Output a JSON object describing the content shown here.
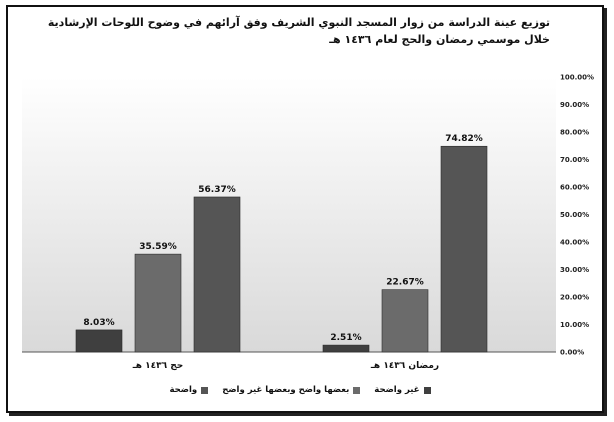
{
  "chart_data": {
    "type": "bar",
    "title": "توزيع عينة الدراسة من زوار المسجد النبوي الشريف وفق آرائهم في وضوح اللوحات الإرشادية",
    "subtitle": "خلال موسمي رمضان والحج لعام ١٤٣٦ هـ",
    "categories": [
      "رمضان ١٤٣٦ هـ",
      "حج ١٤٣٦ هـ"
    ],
    "series": [
      {
        "name": "غير واضحة",
        "values": [
          2.51,
          8.03
        ],
        "labels": [
          "2.51%",
          "8.03%"
        ],
        "color": "#3f3f3f"
      },
      {
        "name": "بعضها واضح وبعضها غير واضح",
        "values": [
          22.67,
          35.59
        ],
        "labels": [
          "22.67%",
          "35.59%"
        ],
        "color": "#6b6b6b"
      },
      {
        "name": "واضحة",
        "values": [
          74.82,
          56.37
        ],
        "labels": [
          "74.82%",
          "56.37%"
        ],
        "color": "#555555"
      }
    ],
    "yticks": [
      "0.00%",
      "10.00%",
      "20.00%",
      "30.00%",
      "40.00%",
      "50.00%",
      "60.00%",
      "70.00%",
      "80.00%",
      "90.00%",
      "100.00%"
    ],
    "ylim": [
      0,
      100
    ],
    "grid": false,
    "legend": "bottom",
    "axis_side": "right"
  }
}
